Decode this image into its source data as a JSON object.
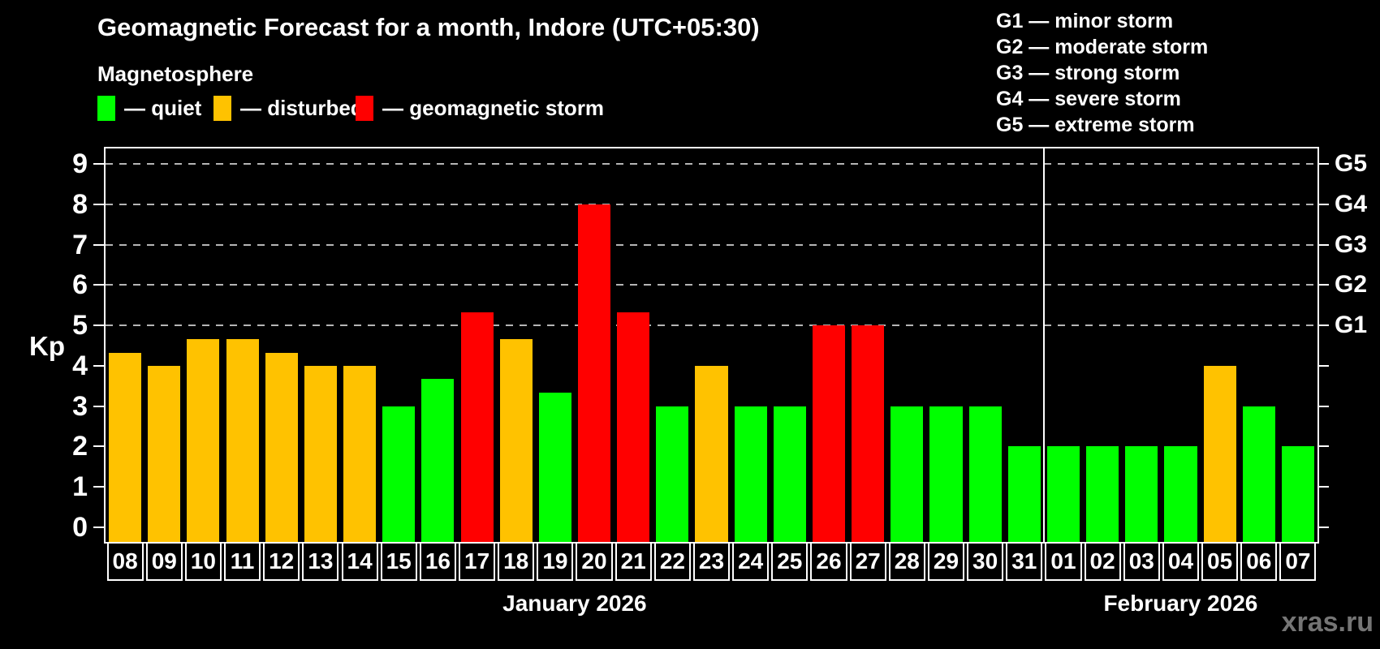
{
  "header": {
    "title": "Geomagnetic Forecast for a month, Indore (UTC+05:30)",
    "subtitle": "Magnetosphere"
  },
  "legend": {
    "items": [
      {
        "key": "quiet",
        "label": "— quiet",
        "color": "#00ff00"
      },
      {
        "key": "disturbed",
        "label": "— disturbed",
        "color": "#ffc200"
      },
      {
        "key": "storm",
        "label": "— geomagnetic storm",
        "color": "#ff0000"
      }
    ]
  },
  "g_legend": {
    "lines": [
      "G1 — minor storm",
      "G2 — moderate storm",
      "G3 — strong storm",
      "G4 — severe storm",
      "G5 — extreme storm"
    ]
  },
  "watermark": "xras.ru",
  "chart_data": {
    "type": "bar",
    "title": "Geomagnetic Forecast for a month, Indore (UTC+05:30)",
    "subtitle": "Magnetosphere",
    "ylabel": "Kp",
    "ylim": [
      0,
      9.4
    ],
    "yticks": [
      0,
      1,
      2,
      3,
      4,
      5,
      6,
      7,
      8,
      9
    ],
    "gridlines": [
      5,
      6,
      7,
      8,
      9
    ],
    "grid": "horizontal dashed lines at Kp 5-9 (G1-G5 levels)",
    "legend_position": "top-left",
    "right_axis": [
      {
        "kp": 5,
        "label": "G1"
      },
      {
        "kp": 6,
        "label": "G2"
      },
      {
        "kp": 7,
        "label": "G3"
      },
      {
        "kp": 8,
        "label": "G4"
      },
      {
        "kp": 9,
        "label": "G5"
      }
    ],
    "colors": {
      "quiet": "#00ff00",
      "disturbed": "#ffc200",
      "storm": "#ff0000"
    },
    "groups": [
      {
        "month": "January 2026",
        "bars": [
          {
            "date": "08",
            "kp": 4.33,
            "state": "disturbed"
          },
          {
            "date": "09",
            "kp": 4.0,
            "state": "disturbed"
          },
          {
            "date": "10",
            "kp": 4.67,
            "state": "disturbed"
          },
          {
            "date": "11",
            "kp": 4.67,
            "state": "disturbed"
          },
          {
            "date": "12",
            "kp": 4.33,
            "state": "disturbed"
          },
          {
            "date": "13",
            "kp": 4.0,
            "state": "disturbed"
          },
          {
            "date": "14",
            "kp": 4.0,
            "state": "disturbed"
          },
          {
            "date": "15",
            "kp": 3.0,
            "state": "quiet"
          },
          {
            "date": "16",
            "kp": 3.67,
            "state": "quiet"
          },
          {
            "date": "17",
            "kp": 5.33,
            "state": "storm"
          },
          {
            "date": "18",
            "kp": 4.67,
            "state": "disturbed"
          },
          {
            "date": "19",
            "kp": 3.33,
            "state": "quiet"
          },
          {
            "date": "20",
            "kp": 8.0,
            "state": "storm"
          },
          {
            "date": "21",
            "kp": 5.33,
            "state": "storm"
          },
          {
            "date": "22",
            "kp": 3.0,
            "state": "quiet"
          },
          {
            "date": "23",
            "kp": 4.0,
            "state": "disturbed"
          },
          {
            "date": "24",
            "kp": 3.0,
            "state": "quiet"
          },
          {
            "date": "25",
            "kp": 3.0,
            "state": "quiet"
          },
          {
            "date": "26",
            "kp": 5.0,
            "state": "storm"
          },
          {
            "date": "27",
            "kp": 5.0,
            "state": "storm"
          },
          {
            "date": "28",
            "kp": 3.0,
            "state": "quiet"
          },
          {
            "date": "29",
            "kp": 3.0,
            "state": "quiet"
          },
          {
            "date": "30",
            "kp": 3.0,
            "state": "quiet"
          },
          {
            "date": "31",
            "kp": 2.0,
            "state": "quiet"
          }
        ]
      },
      {
        "month": "February 2026",
        "bars": [
          {
            "date": "01",
            "kp": 2.0,
            "state": "quiet"
          },
          {
            "date": "02",
            "kp": 2.0,
            "state": "quiet"
          },
          {
            "date": "03",
            "kp": 2.0,
            "state": "quiet"
          },
          {
            "date": "04",
            "kp": 2.0,
            "state": "quiet"
          },
          {
            "date": "05",
            "kp": 4.0,
            "state": "disturbed"
          },
          {
            "date": "06",
            "kp": 3.0,
            "state": "quiet"
          },
          {
            "date": "07",
            "kp": 2.0,
            "state": "quiet"
          }
        ]
      }
    ]
  }
}
